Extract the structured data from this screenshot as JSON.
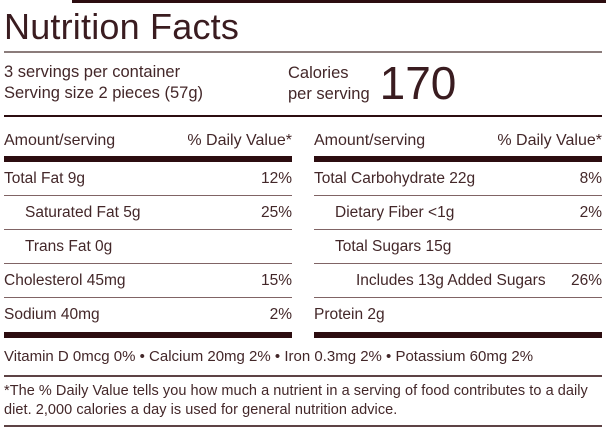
{
  "panel": {
    "title": "Nutrition Facts",
    "servings_per_container": "3 servings per container",
    "serving_size": "Serving size 2 pieces (57g)",
    "calories_label_line1": "Calories",
    "calories_label_line2": "per serving",
    "calories_value": "170",
    "amount_header": "Amount/serving",
    "dv_header": "% Daily Value*",
    "columns": [
      {
        "rows": [
          {
            "name": "Total Fat 9g",
            "dv": "12%"
          },
          {
            "name": "Saturated Fat 5g",
            "dv": "25%"
          },
          {
            "name": "Trans Fat 0g",
            "dv": ""
          },
          {
            "name": "Cholesterol 45mg",
            "dv": "15%"
          },
          {
            "name": "Sodium 40mg",
            "dv": "2%"
          }
        ]
      },
      {
        "rows": [
          {
            "name": "Total Carbohydrate 22g",
            "dv": "8%"
          },
          {
            "name": "Dietary Fiber <1g",
            "dv": "2%"
          },
          {
            "name": "Total Sugars 15g",
            "dv": ""
          },
          {
            "name": "Includes 13g Added Sugars",
            "dv": "26%"
          },
          {
            "name": "Protein 2g",
            "dv": ""
          }
        ]
      }
    ],
    "micronutrients": "Vitamin D 0mcg 0% • Calcium 20mg 2% • Iron 0.3mg 2% • Potassium 60mg 2%",
    "footnote": "*The % Daily Value tells you how much a nutrient in a serving of food contributes to a daily diet. 2,000 calories a day is used for general nutrition advice.",
    "colors": {
      "text": "#432729",
      "dark_bar": "#2c0d10",
      "title_rule": "#8b7c7b",
      "row_rule": "#806465"
    }
  }
}
